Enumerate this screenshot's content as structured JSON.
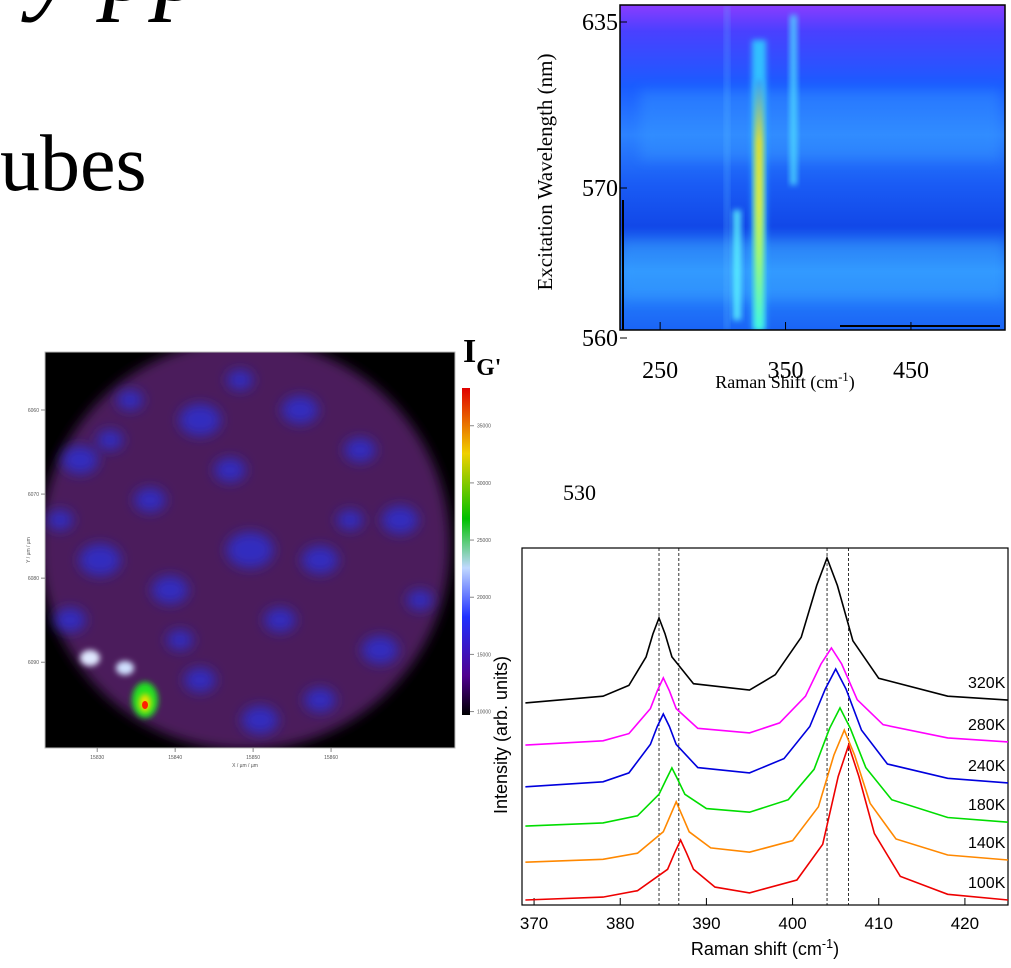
{
  "slide": {
    "title_fragments": [
      "y pp",
      "ubes"
    ],
    "stray_label": "530"
  },
  "chart_data": [
    {
      "type": "heatmap",
      "ylabel": "Excitation Wavelength (nm)",
      "xlabel": [
        "Raman Shift (cm",
        "-1",
        ")"
      ],
      "xlim": [
        218,
        525
      ],
      "xticks": [
        250,
        350,
        450
      ],
      "yticks": [
        635,
        570,
        560
      ]
    },
    {
      "type": "map",
      "xlabel": "X / µm / µm",
      "ylabel": "Y / µm / µm",
      "xlim": [
        15823.3,
        15875.9
      ],
      "xticks": [
        15830,
        15840,
        15850,
        15860
      ],
      "ylim": [
        6053.1,
        6100.2
      ],
      "yticks": [
        6060,
        6070,
        6080,
        6090
      ],
      "colorbar": {
        "label": [
          "I",
          "G'"
        ],
        "lim": [
          9700,
          38300
        ],
        "ticks": [
          35000,
          30000,
          25000,
          20000,
          15000,
          10000
        ]
      }
    },
    {
      "type": "line",
      "xlabel": [
        "Raman shift (cm",
        "-1",
        ")"
      ],
      "ylabel": "Intensity (arb. units)",
      "xlim": [
        368.6,
        425
      ],
      "xticks": [
        370,
        380,
        390,
        400,
        410,
        420
      ],
      "ylim": [
        0,
        10
      ],
      "vlines": [
        384.5,
        386.8,
        404,
        406.5
      ],
      "series": [
        {
          "name": "320K",
          "color": "#000000",
          "x": [
            369,
            378,
            381,
            383,
            383.8,
            384.5,
            385.2,
            386,
            388.5,
            395,
            398,
            401,
            402.8,
            404,
            405.2,
            407,
            410,
            418,
            425
          ],
          "values": [
            5.66,
            5.85,
            6.15,
            6.95,
            7.6,
            8.04,
            7.6,
            6.95,
            6.2,
            6.02,
            6.45,
            7.5,
            8.95,
            9.72,
            8.95,
            7.4,
            6.35,
            5.85,
            5.74
          ]
        },
        {
          "name": "280K",
          "color": "#ff00ff",
          "x": [
            369,
            378,
            381,
            383.5,
            384.3,
            385,
            385.7,
            386.5,
            389,
            395,
            398.5,
            401.5,
            403.3,
            404.5,
            405.7,
            407.5,
            410.5,
            418,
            425
          ],
          "values": [
            4.48,
            4.6,
            4.8,
            5.5,
            6.0,
            6.36,
            6.0,
            5.5,
            4.95,
            4.82,
            5.1,
            5.85,
            6.75,
            7.2,
            6.75,
            5.75,
            5.05,
            4.68,
            4.57
          ]
        },
        {
          "name": "240K",
          "color": "#0000dd",
          "x": [
            369,
            378,
            381,
            383.5,
            384.3,
            385,
            385.7,
            386.5,
            389,
            395,
            399,
            402,
            403.8,
            405,
            406.2,
            408,
            411,
            418,
            425
          ],
          "values": [
            3.31,
            3.45,
            3.7,
            4.5,
            5.0,
            5.35,
            5.0,
            4.5,
            3.85,
            3.7,
            4.1,
            5.0,
            6.05,
            6.61,
            6.05,
            4.9,
            3.95,
            3.55,
            3.42
          ]
        },
        {
          "name": "180K",
          "color": "#00dd00",
          "x": [
            369,
            378,
            382,
            384.5,
            385.3,
            386,
            386.7,
            387.5,
            390,
            395,
            399.5,
            402.5,
            404.3,
            405.5,
            406.7,
            408.5,
            411.5,
            418,
            425
          ],
          "values": [
            2.21,
            2.3,
            2.5,
            3.1,
            3.5,
            3.84,
            3.5,
            3.1,
            2.7,
            2.6,
            2.95,
            3.8,
            4.95,
            5.52,
            4.95,
            3.85,
            2.95,
            2.45,
            2.32
          ]
        },
        {
          "name": "140K",
          "color": "#ff8800",
          "x": [
            369,
            378,
            382,
            385,
            385.8,
            386.5,
            387.2,
            388,
            390.5,
            395,
            400,
            403,
            404.8,
            406,
            407.2,
            409,
            412,
            418,
            425
          ],
          "values": [
            1.2,
            1.28,
            1.45,
            2.05,
            2.5,
            2.89,
            2.5,
            2.05,
            1.6,
            1.48,
            1.8,
            2.75,
            4.2,
            4.9,
            4.2,
            2.85,
            1.85,
            1.4,
            1.26
          ]
        },
        {
          "name": "100K",
          "color": "#ee0000",
          "x": [
            369,
            378,
            382,
            385.5,
            386.3,
            387,
            387.7,
            388.5,
            391,
            395,
            400.5,
            403.5,
            405.3,
            406.5,
            407.7,
            409.5,
            412.5,
            418,
            425
          ],
          "values": [
            0.14,
            0.22,
            0.4,
            1.0,
            1.45,
            1.82,
            1.45,
            1.0,
            0.5,
            0.34,
            0.7,
            1.7,
            3.6,
            4.48,
            3.6,
            2.0,
            0.8,
            0.3,
            0.14
          ]
        }
      ]
    }
  ]
}
